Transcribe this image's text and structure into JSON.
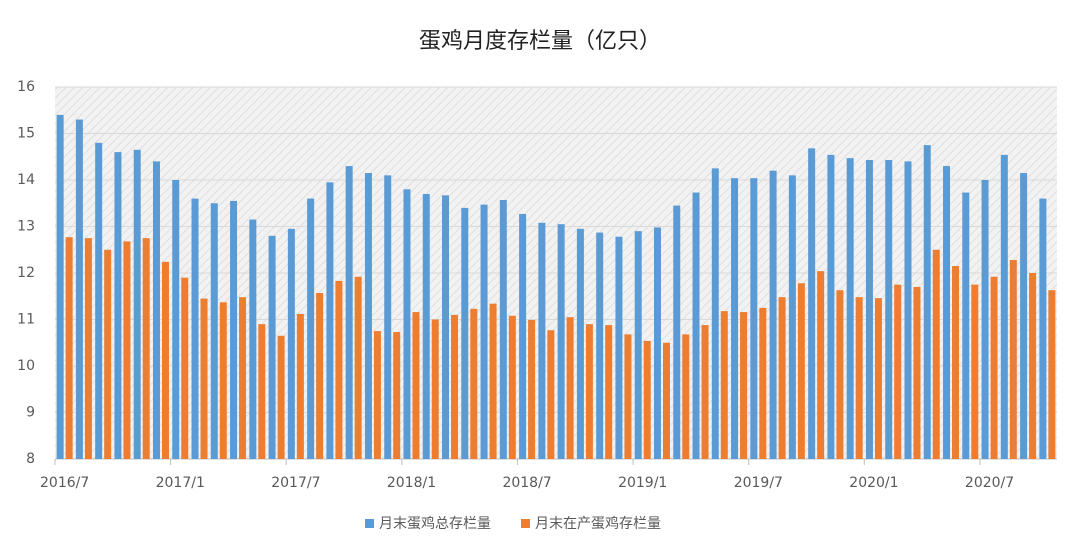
{
  "chart_data": {
    "type": "bar",
    "title": "蛋鸡月度存栏量（亿只）",
    "categories": [
      "2016/7",
      null,
      null,
      null,
      null,
      null,
      "2017/1",
      null,
      null,
      null,
      null,
      null,
      "2017/7",
      null,
      null,
      null,
      null,
      null,
      "2018/1",
      null,
      null,
      null,
      null,
      null,
      "2018/7",
      null,
      null,
      null,
      null,
      null,
      "2019/1",
      null,
      null,
      null,
      null,
      null,
      "2019/7",
      null,
      null,
      null,
      null,
      null,
      "2020/1",
      null,
      null,
      null,
      null,
      null,
      "2020/7",
      null,
      null,
      null
    ],
    "series": [
      {
        "name": "月末蛋鸡总存栏量",
        "color": "#5b9bd5",
        "values": [
          15.4,
          15.3,
          14.8,
          14.6,
          14.65,
          14.4,
          14.0,
          13.6,
          13.5,
          13.55,
          13.15,
          12.8,
          12.95,
          13.6,
          13.95,
          14.3,
          14.15,
          14.1,
          13.8,
          13.7,
          13.67,
          13.4,
          13.47,
          13.57,
          13.27,
          13.08,
          13.05,
          12.95,
          12.87,
          12.78,
          12.9,
          12.98,
          13.45,
          13.73,
          14.25,
          14.04,
          14.04,
          14.2,
          14.1,
          14.68,
          14.54,
          14.47,
          14.43,
          14.43,
          14.4,
          14.75,
          14.3,
          13.73,
          14.0,
          14.54,
          14.15,
          13.6
        ]
      },
      {
        "name": "月末在产蛋鸡存栏量",
        "color": "#ed7d31",
        "values": [
          12.77,
          12.75,
          12.5,
          12.68,
          12.75,
          12.24,
          11.9,
          11.45,
          11.37,
          11.48,
          10.9,
          10.65,
          11.12,
          11.57,
          11.83,
          11.92,
          10.75,
          10.73,
          11.16,
          11.0,
          11.1,
          11.23,
          11.34,
          11.08,
          10.99,
          10.77,
          11.05,
          10.9,
          10.88,
          10.68,
          10.54,
          10.5,
          10.68,
          10.88,
          11.18,
          11.16,
          11.25,
          11.48,
          11.78,
          12.04,
          11.63,
          11.48,
          11.46,
          11.75,
          11.7,
          12.5,
          12.15,
          11.75,
          11.92,
          12.28,
          12.0,
          11.63
        ]
      }
    ],
    "ylim": [
      8,
      16
    ],
    "yticks": [
      8,
      9,
      10,
      11,
      12,
      13,
      14,
      15,
      16
    ],
    "grid": true,
    "legend": "bottom"
  }
}
